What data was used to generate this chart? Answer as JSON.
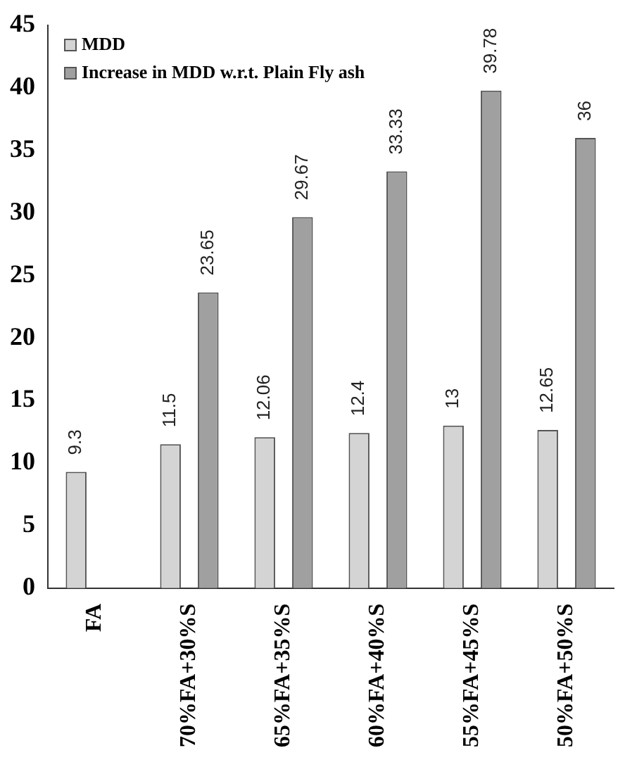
{
  "chart_data": {
    "type": "bar",
    "categories": [
      "FA",
      "70%FA+30%S",
      "65%FA+35%S",
      "60%FA+40%S",
      "55%FA+45%S",
      "50%FA+50%S"
    ],
    "series": [
      {
        "name": "MDD",
        "color": "#d4d4d4",
        "values": [
          9.3,
          11.5,
          12.06,
          12.4,
          13,
          12.65
        ]
      },
      {
        "name": "Increase in MDD w.r.t. Plain Fly ash",
        "color": "#a0a0a0",
        "values": [
          null,
          23.65,
          29.67,
          33.33,
          39.78,
          36
        ]
      }
    ],
    "ylim": [
      0,
      45
    ],
    "yticks": [
      0,
      5,
      10,
      15,
      20,
      25,
      30,
      35,
      40,
      45
    ],
    "grid": false,
    "legend": "top left",
    "data_labels": true
  }
}
